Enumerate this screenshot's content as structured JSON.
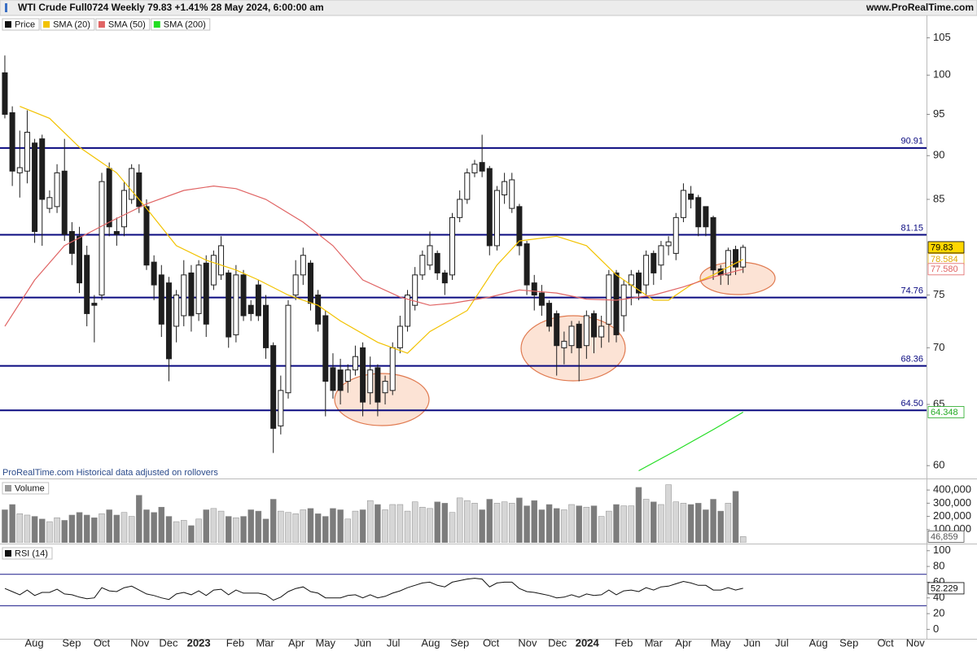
{
  "chart_data": [
    {
      "type": "candlestick",
      "title": "WTI Crude Full0724 Weekly 79.83 +1.41% 28 May 2024, 6:00:00 am",
      "source": "www.ProRealTime.com",
      "annotation": "ProRealTime.com  Historical data adjusted on rollovers",
      "x": [
        0,
        1,
        2,
        3,
        4,
        5,
        6,
        7,
        8,
        9,
        10,
        11,
        12,
        13,
        14,
        15,
        16,
        17,
        18,
        19,
        20,
        21,
        22,
        23,
        24,
        25,
        26,
        27,
        28,
        29,
        30,
        31,
        32,
        33,
        34,
        35,
        36,
        37,
        38,
        39,
        40,
        41,
        42,
        43,
        44,
        45,
        46,
        47,
        48,
        49,
        50,
        51,
        52,
        53,
        54,
        55,
        56,
        57,
        58,
        59,
        60,
        61,
        62,
        63,
        64,
        65,
        66,
        67,
        68,
        69,
        70,
        71,
        72,
        73,
        74,
        75,
        76,
        77,
        78,
        79,
        80,
        81,
        82,
        83,
        84,
        85,
        86,
        87,
        88,
        89,
        90,
        91,
        92,
        93,
        94,
        95,
        96,
        97,
        98,
        99
      ],
      "open": [
        100.3,
        95.2,
        88.0,
        88.2,
        91.5,
        92.0,
        84.0,
        84.2,
        88.2,
        81.5,
        81.0,
        79.0,
        74.2,
        75.0,
        88.5,
        81.5,
        82.0,
        85.0,
        88.0,
        84.2,
        78.3,
        77.0,
        76.2,
        72.0,
        73.0,
        77.2,
        73.2,
        78.2,
        76.0,
        77.0,
        77.2,
        71.2,
        77.0,
        74.0,
        76.0,
        74.0,
        70.2,
        63.2,
        66.0,
        75.0,
        77.0,
        78.2,
        75.0,
        73.0,
        68.2,
        68.0,
        67.0,
        68.0,
        70.0,
        66.0,
        68.2,
        66.0,
        66.2,
        70.0,
        72.0,
        74.0,
        77.0,
        78.0,
        79.2,
        77.2,
        77.0,
        83.0,
        85.0,
        88.0,
        89.2,
        88.5,
        80.0,
        85.5,
        84.0,
        84.2,
        80.2,
        76.2,
        75.2,
        74.2,
        73.2,
        70.0,
        70.2,
        72.2,
        70.2,
        73.2,
        71.0,
        72.2,
        77.2,
        73.0,
        76.0,
        77.2,
        76.0,
        79.2,
        78.0,
        80.0,
        79.2,
        83.0,
        85.6,
        85.2,
        84.2,
        83.0,
        77.6,
        77.0,
        79.6,
        77.8
      ],
      "high": [
        102.6,
        96.0,
        93.0,
        95.5,
        92.0,
        92.5,
        86.0,
        89.0,
        92.0,
        82.5,
        82.0,
        80.0,
        75.0,
        88.0,
        89.2,
        83.0,
        87.0,
        89.0,
        89.0,
        85.0,
        79.0,
        78.0,
        76.8,
        75.5,
        78.5,
        78.0,
        78.5,
        79.0,
        79.5,
        81.0,
        77.5,
        78.0,
        77.5,
        74.5,
        76.5,
        75.0,
        70.5,
        67.5,
        74.5,
        78.5,
        79.8,
        78.5,
        75.5,
        73.5,
        69.5,
        69.0,
        68.5,
        70.2,
        70.5,
        69.2,
        68.5,
        67.5,
        70.5,
        73.0,
        75.5,
        77.8,
        79.5,
        81.5,
        79.5,
        77.5,
        83.5,
        86.0,
        88.5,
        89.5,
        92.5,
        88.8,
        86.5,
        88.0,
        88.0,
        84.5,
        80.5,
        77.0,
        76.0,
        74.5,
        73.5,
        71.5,
        72.5,
        72.5,
        73.5,
        73.5,
        73.0,
        77.5,
        77.5,
        76.5,
        77.5,
        77.5,
        79.5,
        79.5,
        80.5,
        81.0,
        83.5,
        86.8,
        86.5,
        85.5,
        84.2,
        83.2,
        78.0,
        79.8,
        80.0,
        80.1
      ],
      "low": [
        94.5,
        86.5,
        85.2,
        86.8,
        80.3,
        80.0,
        83.5,
        83.5,
        80.5,
        78.0,
        75.2,
        72.0,
        70.5,
        74.5,
        81.0,
        80.0,
        81.0,
        84.5,
        83.5,
        77.5,
        74.5,
        71.0,
        67.0,
        70.5,
        72.0,
        71.5,
        72.5,
        71.0,
        75.5,
        76.5,
        70.0,
        70.5,
        72.5,
        72.5,
        72.5,
        69.0,
        61.0,
        62.5,
        65.5,
        74.5,
        76.0,
        73.5,
        71.5,
        64.0,
        65.5,
        65.0,
        66.0,
        67.5,
        64.0,
        65.0,
        64.0,
        65.0,
        65.8,
        69.5,
        71.5,
        73.5,
        76.5,
        77.5,
        76.5,
        75.0,
        76.5,
        82.5,
        84.5,
        87.5,
        87.5,
        79.0,
        79.5,
        84.5,
        83.5,
        79.0,
        75.0,
        73.5,
        73.0,
        71.5,
        67.5,
        68.5,
        69.5,
        67.0,
        69.0,
        69.5,
        70.0,
        70.5,
        70.5,
        71.5,
        74.0,
        74.5,
        75.0,
        76.0,
        76.5,
        79.0,
        78.5,
        82.5,
        84.0,
        81.0,
        81.0,
        76.5,
        76.0,
        76.0,
        77.0,
        77.2
      ],
      "close": [
        95.0,
        88.2,
        88.6,
        92.8,
        81.5,
        85.0,
        85.2,
        88.0,
        81.2,
        79.2,
        76.2,
        73.2,
        74.0,
        87.0,
        82.0,
        81.2,
        86.0,
        88.5,
        84.2,
        78.0,
        76.0,
        72.2,
        69.0,
        75.0,
        77.0,
        73.0,
        78.0,
        72.2,
        79.0,
        80.0,
        71.0,
        77.0,
        73.0,
        73.2,
        73.0,
        70.0,
        63.0,
        66.2,
        74.0,
        77.0,
        79.0,
        74.2,
        72.2,
        67.0,
        66.2,
        66.2,
        68.0,
        69.2,
        65.2,
        68.0,
        65.2,
        67.0,
        70.0,
        72.0,
        75.0,
        77.0,
        79.0,
        80.0,
        77.2,
        76.2,
        83.0,
        85.0,
        88.0,
        89.0,
        88.2,
        80.0,
        86.0,
        87.0,
        87.2,
        80.0,
        76.0,
        75.0,
        74.0,
        72.0,
        70.2,
        70.6,
        72.0,
        70.0,
        73.0,
        71.0,
        72.0,
        77.0,
        71.2,
        76.0,
        77.0,
        75.2,
        79.0,
        77.2,
        80.0,
        80.4,
        83.0,
        86.0,
        85.0,
        82.0,
        82.0,
        77.5,
        77.0,
        79.5,
        77.8,
        79.83
      ],
      "up_color": "#ffffff",
      "down_color": "#1e1e1e",
      "series": [
        {
          "name": "Price",
          "color": "#111111"
        },
        {
          "name": "SMA (20)",
          "color": "#f2c200",
          "x": [
            2,
            6,
            10,
            15,
            19,
            23,
            27,
            31,
            34,
            38,
            42,
            45,
            50,
            54,
            57,
            62,
            66,
            69,
            74,
            78,
            82,
            87,
            89,
            92,
            95,
            99
          ],
          "values": [
            96,
            94.5,
            91,
            88,
            84,
            80,
            78.5,
            77.5,
            76.5,
            75,
            74,
            72.5,
            70.5,
            69.5,
            71.5,
            73.5,
            78,
            80.5,
            81,
            80,
            77,
            74.5,
            74.5,
            76,
            77,
            78.584
          ]
        },
        {
          "name": "SMA (50)",
          "color": "#e06464",
          "x": [
            0,
            4,
            8,
            14,
            19,
            24,
            28,
            31,
            35,
            40,
            44,
            48,
            53,
            57,
            60,
            65,
            69,
            74,
            78,
            82,
            87,
            91,
            95,
            99
          ],
          "values": [
            72,
            76.5,
            80,
            82.5,
            84.5,
            86,
            86.5,
            86.2,
            85,
            82.5,
            80,
            76.5,
            74.8,
            74,
            74.2,
            74.8,
            75.5,
            75.2,
            74.6,
            74.5,
            75,
            75.8,
            76.8,
            77.58
          ]
        },
        {
          "name": "SMA (200)",
          "color": "#22dd22",
          "x": [
            85,
            90,
            95,
            99
          ],
          "values": [
            59.6,
            61.2,
            62.9,
            64.348
          ]
        }
      ],
      "xlim": [
        -0.65,
        123.6
      ],
      "ylim": [
        59,
        108
      ],
      "log_scale": true,
      "yticks": [
        60,
        65,
        70,
        75,
        85,
        90,
        95,
        100,
        105
      ],
      "levels": [
        90.91,
        81.15,
        74.76,
        68.36,
        {
          "value": 64.5,
          "label": "64.50"
        }
      ],
      "level_color": "#0a0a80",
      "current_values": [
        {
          "value": 79.83,
          "color": "#000000",
          "fill": "#ffd700"
        },
        {
          "value": 78.584,
          "color": "#e0a800"
        },
        {
          "value": 77.58,
          "label": "77.580",
          "color": "#e06464"
        },
        {
          "value": 64.348,
          "color": "#22aa22"
        }
      ]
    },
    {
      "type": "bar",
      "title": "Volume",
      "color": "#999999",
      "x": [
        0,
        1,
        2,
        3,
        4,
        5,
        6,
        7,
        8,
        9,
        10,
        11,
        12,
        13,
        14,
        15,
        16,
        17,
        18,
        19,
        20,
        21,
        22,
        23,
        24,
        25,
        26,
        27,
        28,
        29,
        30,
        31,
        32,
        33,
        34,
        35,
        36,
        37,
        38,
        39,
        40,
        41,
        42,
        43,
        44,
        45,
        46,
        47,
        48,
        49,
        50,
        51,
        52,
        53,
        54,
        55,
        56,
        57,
        58,
        59,
        60,
        61,
        62,
        63,
        64,
        65,
        66,
        67,
        68,
        69,
        70,
        71,
        72,
        73,
        74,
        75,
        76,
        77,
        78,
        79,
        80,
        81,
        82,
        83,
        84,
        85,
        86,
        87,
        88,
        89,
        90,
        91,
        92,
        93,
        94,
        95,
        96,
        97,
        98,
        99
      ],
      "values": [
        250000,
        290000,
        220000,
        210000,
        200000,
        180000,
        160000,
        190000,
        170000,
        210000,
        230000,
        210000,
        190000,
        220000,
        250000,
        210000,
        230000,
        200000,
        360000,
        250000,
        230000,
        270000,
        200000,
        160000,
        170000,
        130000,
        180000,
        250000,
        260000,
        240000,
        200000,
        190000,
        200000,
        250000,
        240000,
        180000,
        330000,
        240000,
        230000,
        220000,
        250000,
        260000,
        220000,
        200000,
        260000,
        250000,
        180000,
        240000,
        250000,
        320000,
        290000,
        250000,
        290000,
        290000,
        240000,
        310000,
        270000,
        260000,
        310000,
        300000,
        230000,
        340000,
        320000,
        300000,
        250000,
        330000,
        300000,
        310000,
        300000,
        340000,
        280000,
        320000,
        250000,
        290000,
        260000,
        250000,
        290000,
        280000,
        270000,
        280000,
        200000,
        240000,
        290000,
        280000,
        280000,
        420000,
        330000,
        310000,
        290000,
        440000,
        310000,
        300000,
        290000,
        300000,
        250000,
        330000,
        240000,
        300000,
        390000,
        46859
      ],
      "up_color": "#d6d6d6",
      "down_color": "#7c7c7c",
      "xlim": [
        -0.65,
        123.6
      ],
      "ylim": [
        0,
        475000
      ],
      "yticks": [
        {
          "value": 100000,
          "label": "100,000"
        },
        {
          "value": 200000,
          "label": "200,000"
        },
        {
          "value": 300000,
          "label": "300,000"
        },
        {
          "value": 400000,
          "label": "400,000"
        }
      ],
      "current_values": [
        {
          "value": 46859,
          "label": "46,859",
          "color": "#555555"
        }
      ]
    },
    {
      "type": "line",
      "title": "RSI (14)",
      "color": "#111111",
      "x": [
        0,
        1,
        2,
        3,
        4,
        5,
        6,
        7,
        8,
        9,
        10,
        11,
        12,
        13,
        14,
        15,
        16,
        17,
        18,
        19,
        20,
        21,
        22,
        23,
        24,
        25,
        26,
        27,
        28,
        29,
        30,
        31,
        32,
        33,
        34,
        35,
        36,
        37,
        38,
        39,
        40,
        41,
        42,
        43,
        44,
        45,
        46,
        47,
        48,
        49,
        50,
        51,
        52,
        53,
        54,
        55,
        56,
        57,
        58,
        59,
        60,
        61,
        62,
        63,
        64,
        65,
        66,
        67,
        68,
        69,
        70,
        71,
        72,
        73,
        74,
        75,
        76,
        77,
        78,
        79,
        80,
        81,
        82,
        83,
        84,
        85,
        86,
        87,
        88,
        89,
        90,
        91,
        92,
        93,
        94,
        95,
        96,
        97,
        98,
        99
      ],
      "values": [
        52,
        48,
        44,
        50,
        43,
        47,
        47,
        51,
        45,
        44,
        41,
        39,
        40,
        53,
        49,
        48,
        53,
        55,
        50,
        45,
        43,
        40,
        38,
        45,
        47,
        44,
        49,
        43,
        50,
        51,
        44,
        50,
        46,
        46,
        46,
        44,
        37,
        41,
        48,
        52,
        54,
        48,
        46,
        40,
        40,
        40,
        43,
        44,
        40,
        44,
        40,
        42,
        46,
        49,
        53,
        56,
        59,
        60,
        56,
        54,
        60,
        62,
        64,
        65,
        64,
        54,
        59,
        60,
        60,
        52,
        48,
        47,
        45,
        43,
        40,
        41,
        44,
        41,
        45,
        43,
        44,
        50,
        44,
        49,
        50,
        48,
        53,
        50,
        54,
        55,
        58,
        61,
        59,
        56,
        56,
        50,
        50,
        53,
        50,
        52.229
      ],
      "xlim": [
        -0.65,
        123.6
      ],
      "ylim": [
        -12,
        107
      ],
      "yticks": [
        0,
        20,
        40,
        60,
        80,
        100
      ],
      "levels": [
        30,
        70
      ],
      "level_color": "#1a1a8a",
      "xticks": [
        {
          "value": 3.94,
          "label": "Aug"
        },
        {
          "value": 8.95,
          "label": "Sep"
        },
        {
          "value": 13.0,
          "label": "Oct"
        },
        {
          "value": 18.1,
          "label": "Nov"
        },
        {
          "value": 21.95,
          "label": "Dec"
        },
        {
          "value": 26.0,
          "label": "2023"
        },
        {
          "value": 30.9,
          "label": "Feb"
        },
        {
          "value": 34.9,
          "label": "Mar"
        },
        {
          "value": 39.1,
          "label": "Apr"
        },
        {
          "value": 43.0,
          "label": "May"
        },
        {
          "value": 48.0,
          "label": "Jun"
        },
        {
          "value": 52.1,
          "label": "Jul"
        },
        {
          "value": 57.1,
          "label": "Aug"
        },
        {
          "value": 61.0,
          "label": "Sep"
        },
        {
          "value": 65.2,
          "label": "Oct"
        },
        {
          "value": 70.1,
          "label": "Nov"
        },
        {
          "value": 74.1,
          "label": "Dec"
        },
        {
          "value": 78.1,
          "label": "2024"
        },
        {
          "value": 83.0,
          "label": "Feb"
        },
        {
          "value": 87.0,
          "label": "Mar"
        },
        {
          "value": 91.0,
          "label": "Apr"
        },
        {
          "value": 96.0,
          "label": "May"
        },
        {
          "value": 100.2,
          "label": "Jun"
        },
        {
          "value": 104.2,
          "label": "Jul"
        },
        {
          "value": 109.1,
          "label": "Aug"
        },
        {
          "value": 113.2,
          "label": "Sep"
        },
        {
          "value": 118.1,
          "label": "Oct"
        },
        {
          "value": 122.1,
          "label": "Nov"
        }
      ],
      "current_values": [
        {
          "value": 52.229,
          "color": "#000000"
        }
      ]
    }
  ]
}
